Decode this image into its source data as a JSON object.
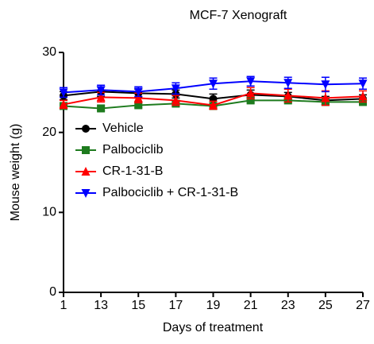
{
  "chart_data": {
    "type": "line",
    "title": "MCF-7 Xenograft",
    "xlabel": "Days of treatment",
    "ylabel": "Mouse weight (g)",
    "categories": [
      "1",
      "13",
      "15",
      "17",
      "19",
      "21",
      "23",
      "25",
      "27"
    ],
    "ylim": [
      0,
      30
    ],
    "yticks": [
      0,
      10,
      20,
      30
    ],
    "legend": "upper left",
    "series": [
      {
        "name": "Vehicle",
        "color": "#000000",
        "marker": "circle",
        "values": [
          24.6,
          25.1,
          24.9,
          24.8,
          24.2,
          24.7,
          24.5,
          24.0,
          24.2
        ],
        "errors": [
          0.5,
          0.6,
          0.5,
          0.5,
          0.6,
          0.6,
          0.5,
          0.5,
          0.5
        ]
      },
      {
        "name": "Palbociclib",
        "color": "#1e7b1e",
        "marker": "square",
        "values": [
          23.3,
          23.0,
          23.4,
          23.6,
          23.3,
          24.0,
          24.0,
          23.8,
          23.8
        ],
        "errors": [
          0.3,
          0.3,
          0.3,
          0.3,
          0.3,
          0.3,
          0.3,
          0.3,
          0.3
        ]
      },
      {
        "name": "CR-1-31-B",
        "color": "#ff0000",
        "marker": "triangle-up",
        "values": [
          23.5,
          24.4,
          24.3,
          24.0,
          23.4,
          24.9,
          24.6,
          24.3,
          24.5
        ],
        "errors": [
          0.5,
          0.6,
          0.6,
          0.6,
          0.5,
          0.7,
          0.8,
          0.9,
          0.7
        ]
      },
      {
        "name": "Palbociclib + CR-1-31-B",
        "color": "#0000ff",
        "marker": "triangle-down",
        "values": [
          25.0,
          25.3,
          25.1,
          25.5,
          26.1,
          26.4,
          26.2,
          26.0,
          26.1
        ],
        "errors": [
          0.6,
          0.6,
          0.6,
          0.7,
          0.7,
          0.6,
          0.7,
          0.9,
          0.7
        ]
      }
    ]
  }
}
